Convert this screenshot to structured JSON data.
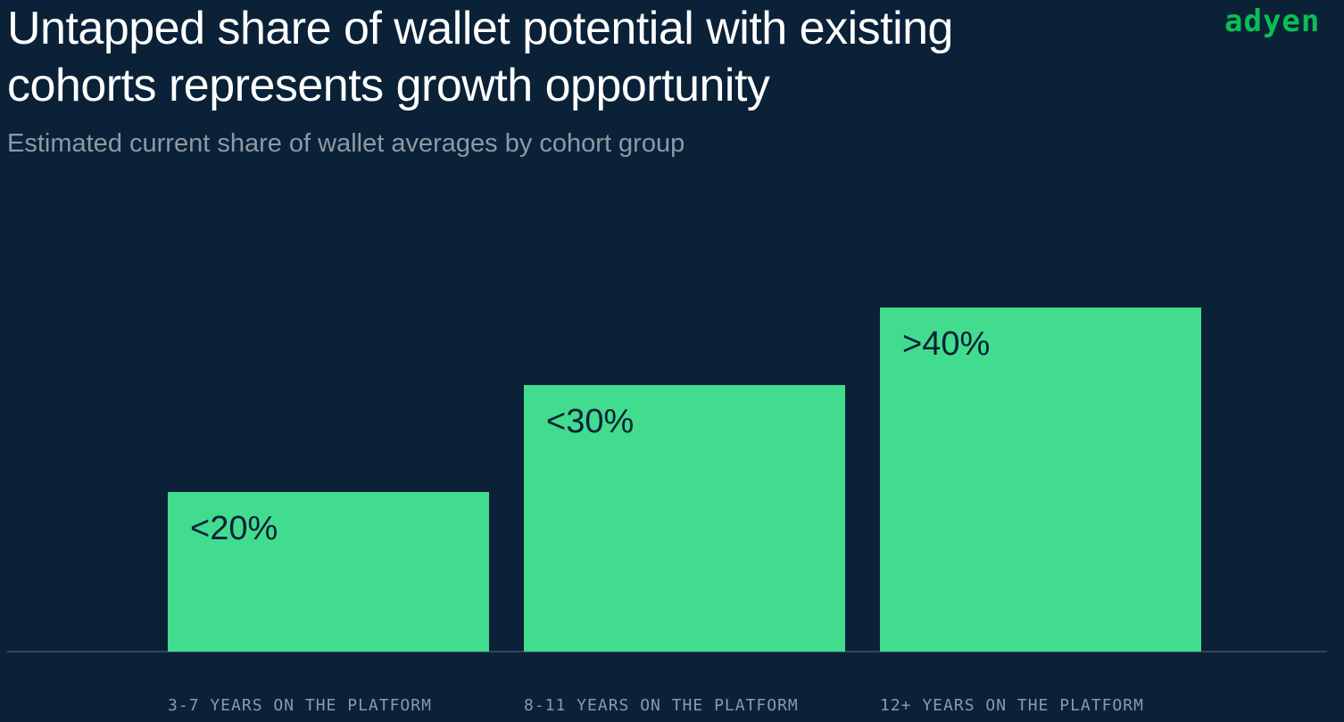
{
  "header": {
    "title": "Untapped share of wallet potential with existing cohorts represents growth opportunity",
    "subtitle": "Estimated current share of wallet averages by cohort group",
    "logo_text": "adyen"
  },
  "colors": {
    "background": "#0b2138",
    "bar": "#41dc8e",
    "logo": "#0abf53"
  },
  "chart_data": {
    "type": "bar",
    "title": "Untapped share of wallet potential with existing cohorts represents growth opportunity",
    "subtitle": "Estimated current share of wallet averages by cohort group",
    "categories": [
      "3-7 YEARS ON THE PLATFORM",
      "8-11 YEARS ON THE PLATFORM",
      "12+ YEARS ON THE PLATFORM"
    ],
    "values": [
      20,
      30,
      40
    ],
    "labels": [
      "<20%",
      "<30%",
      ">40%"
    ],
    "xlabel": "",
    "ylabel": "",
    "ylim": [
      0,
      100
    ],
    "grid": false,
    "legend": "none"
  }
}
